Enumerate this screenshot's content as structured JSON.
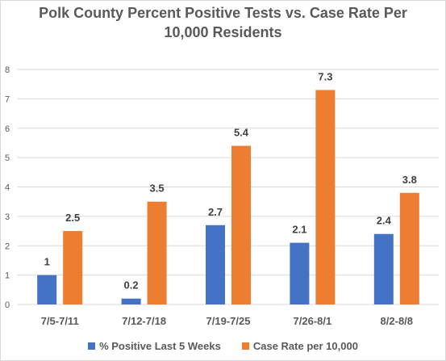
{
  "chart_data": {
    "type": "bar",
    "title": "Polk County Percent Positive Tests vs. Case Rate Per 10,000 Residents",
    "categories": [
      "7/5-7/11",
      "7/12-7/18",
      "7/19-7/25",
      "7/26-8/1",
      "8/2-8/8"
    ],
    "series": [
      {
        "name": "% Positive Last 5 Weeks",
        "color": "#4472C4",
        "values": [
          1,
          0.2,
          2.7,
          2.1,
          2.4
        ]
      },
      {
        "name": "Case Rate per 10,000",
        "color": "#ED7D31",
        "values": [
          2.5,
          3.5,
          5.4,
          7.3,
          3.8
        ]
      }
    ],
    "ylim": [
      0,
      8
    ],
    "yticks": [
      0,
      1,
      2,
      3,
      4,
      5,
      6,
      7,
      8
    ],
    "grid": true,
    "legend": "bottom"
  }
}
